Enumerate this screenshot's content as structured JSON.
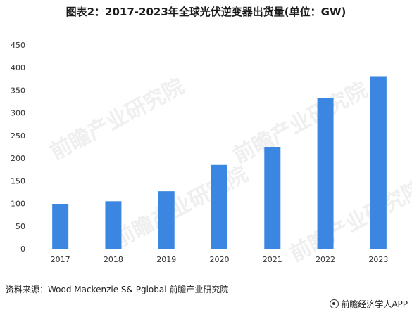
{
  "header": {
    "title": "图表2：2017-2023年全球光伏逆变器出货量(单位：GW)"
  },
  "chart_data": {
    "type": "bar",
    "categories": [
      "2017",
      "2018",
      "2019",
      "2020",
      "2021",
      "2022",
      "2023"
    ],
    "values": [
      98,
      105,
      127,
      185,
      225,
      333,
      381
    ],
    "ylim": [
      0,
      450
    ],
    "yticks": [
      "0",
      "50",
      "100",
      "150",
      "200",
      "250",
      "300",
      "350",
      "400",
      "450"
    ],
    "grid": false,
    "legend": "none",
    "bar_color": "#3a86e0"
  },
  "footer": {
    "source": "资料来源：Wood Mackenzie S& Pglobal 前瞻产业研究院",
    "brand": "前瞻经济学人APP"
  },
  "watermark": {
    "text": "前瞻产业研究院"
  }
}
